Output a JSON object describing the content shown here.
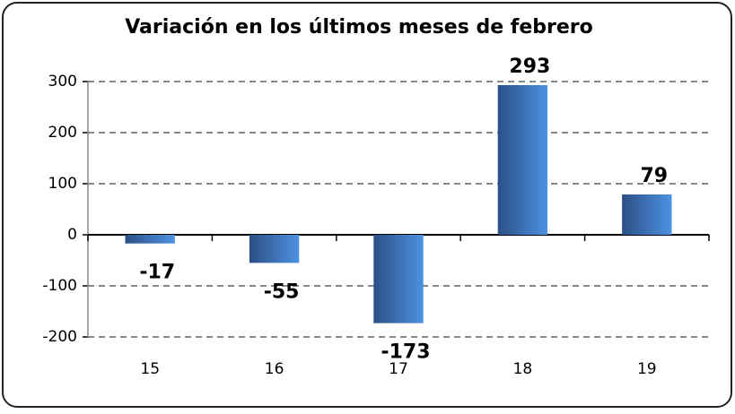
{
  "chart_data": {
    "type": "bar",
    "title": "Variación en los últimos meses de febrero",
    "categories": [
      "15",
      "16",
      "17",
      "18",
      "19"
    ],
    "values": [
      -17,
      -55,
      -173,
      293,
      79
    ],
    "color": "#3a74c4",
    "ylim": [
      -200,
      300
    ],
    "yticks": [
      -200,
      -100,
      0,
      100,
      200,
      300
    ],
    "grid": true
  }
}
